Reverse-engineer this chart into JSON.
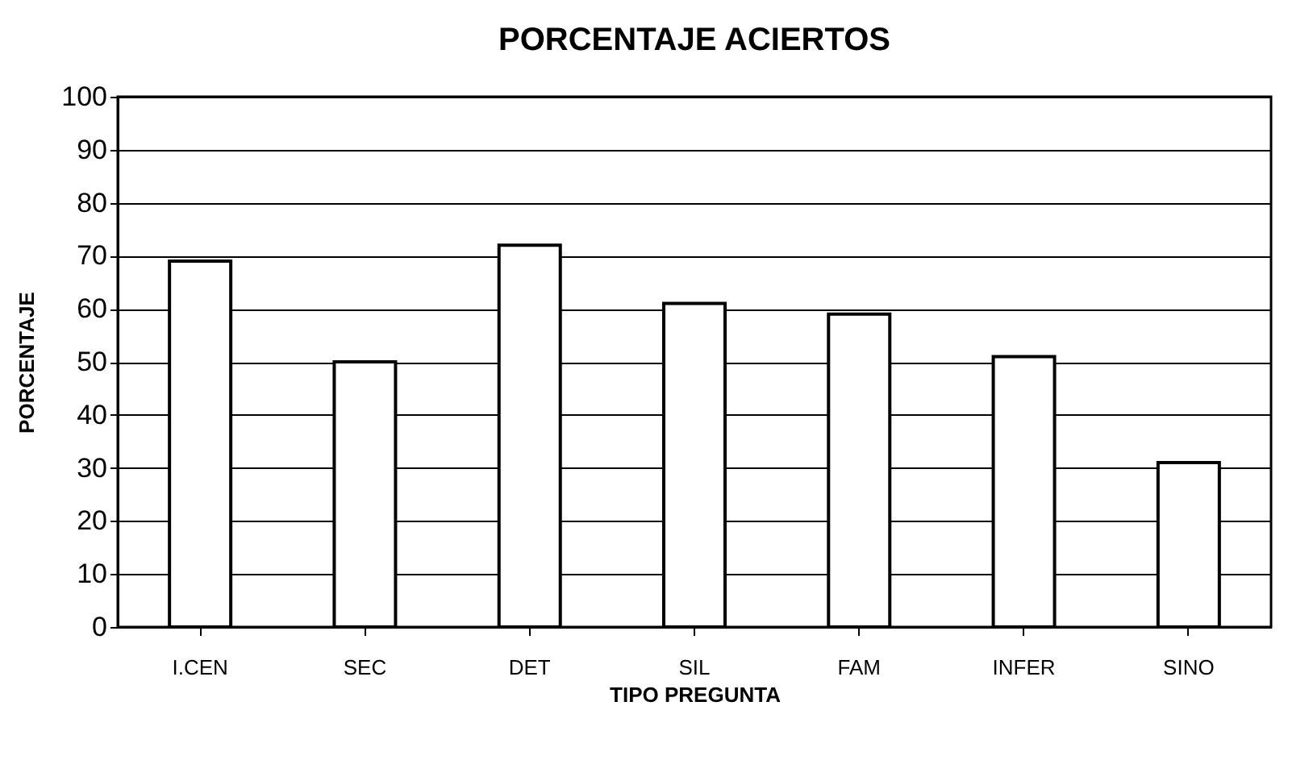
{
  "chart_data": {
    "type": "bar",
    "title": "PORCENTAJE ACIERTOS",
    "xlabel": "TIPO PREGUNTA",
    "ylabel": "PORCENTAJE",
    "categories": [
      "I.CEN",
      "SEC",
      "DET",
      "SIL",
      "FAM",
      "INFER",
      "SINO"
    ],
    "values": [
      69,
      50,
      72,
      61,
      59,
      51,
      31
    ],
    "color": "#ffffff",
    "ylim": [
      0,
      100
    ],
    "yticks": [
      0,
      10,
      20,
      30,
      40,
      50,
      60,
      70,
      80,
      90,
      100
    ],
    "grid": "y"
  }
}
